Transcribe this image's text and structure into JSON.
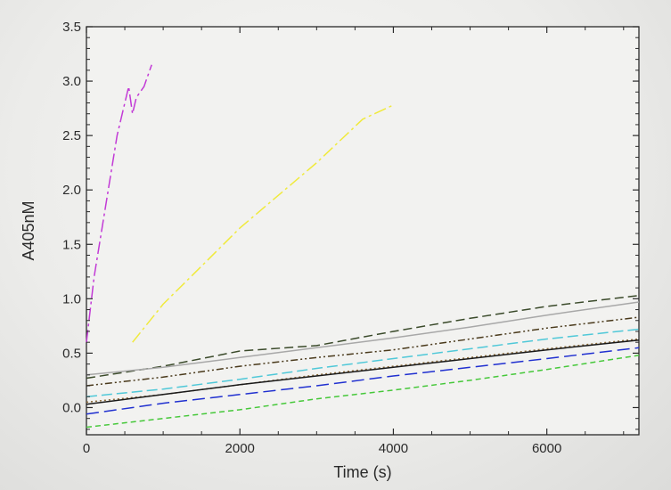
{
  "chart_data": {
    "type": "line",
    "title": "",
    "xlabel": "Time (s)",
    "ylabel": "A405nM",
    "xlim": [
      0,
      7200
    ],
    "ylim": [
      -0.25,
      3.5
    ],
    "x_ticks": [
      0,
      2000,
      4000,
      6000
    ],
    "x_tick_labels": [
      "0",
      "2000",
      "4000",
      "6000"
    ],
    "y_ticks": [
      0.0,
      0.5,
      1.0,
      1.5,
      2.0,
      2.5,
      3.0,
      3.5
    ],
    "y_tick_labels": [
      "0.0",
      "0.5",
      "1.0",
      "1.5",
      "2.0",
      "2.5",
      "3.0",
      "3.5"
    ],
    "grid": false,
    "legend": "none",
    "series": [
      {
        "color": "#c23ad6",
        "dash": "14,4,3,4",
        "x": [
          0,
          100,
          250,
          400,
          550,
          600,
          650,
          750,
          850
        ],
        "y": [
          0.6,
          1.2,
          1.85,
          2.5,
          2.95,
          2.7,
          2.85,
          2.95,
          3.15
        ]
      },
      {
        "color": "#f0ea3c",
        "dash": "14,4,3,4",
        "x": [
          600,
          1000,
          1500,
          2000,
          2500,
          3000,
          3600,
          4000
        ],
        "y": [
          0.6,
          0.95,
          1.3,
          1.65,
          1.95,
          2.25,
          2.65,
          2.78
        ]
      },
      {
        "color": "#3a4a2a",
        "dash": "10,5",
        "x": [
          0,
          1000,
          2000,
          3000,
          4000,
          5000,
          6000,
          7200
        ],
        "y": [
          0.27,
          0.38,
          0.52,
          0.57,
          0.7,
          0.82,
          0.93,
          1.03
        ]
      },
      {
        "color": "#a8a8a8",
        "dash": "",
        "x": [
          0,
          1000,
          2000,
          3000,
          4000,
          5000,
          6000,
          7200
        ],
        "y": [
          0.3,
          0.37,
          0.46,
          0.55,
          0.64,
          0.74,
          0.85,
          0.97
        ]
      },
      {
        "color": "#4a3a1c",
        "dash": "8,3,2,3,2,3",
        "x": [
          0,
          1000,
          2000,
          3000,
          4000,
          5000,
          6000,
          7200
        ],
        "y": [
          0.2,
          0.28,
          0.38,
          0.46,
          0.53,
          0.63,
          0.73,
          0.83
        ]
      },
      {
        "color": "#4fc8d8",
        "dash": "12,5",
        "x": [
          0,
          1000,
          2000,
          3000,
          4000,
          5000,
          6000,
          7200
        ],
        "y": [
          0.1,
          0.17,
          0.26,
          0.36,
          0.45,
          0.54,
          0.63,
          0.72
        ]
      },
      {
        "color": "#8a6a3a",
        "dash": "2,3",
        "x": [
          0,
          1000,
          2000,
          3000,
          4000,
          5000,
          6000,
          7200
        ],
        "y": [
          0.05,
          0.12,
          0.21,
          0.3,
          0.38,
          0.46,
          0.54,
          0.63
        ]
      },
      {
        "color": "#1a1a1a",
        "dash": "",
        "x": [
          0,
          1000,
          2000,
          3000,
          4000,
          5000,
          6000,
          7200
        ],
        "y": [
          0.03,
          0.12,
          0.21,
          0.29,
          0.37,
          0.45,
          0.53,
          0.62
        ]
      },
      {
        "color": "#2030d0",
        "dash": "14,6",
        "x": [
          0,
          1000,
          2000,
          3000,
          4000,
          5000,
          6000,
          7200
        ],
        "y": [
          -0.06,
          0.04,
          0.12,
          0.2,
          0.29,
          0.37,
          0.45,
          0.55
        ]
      },
      {
        "color": "#46c83a",
        "dash": "6,4",
        "x": [
          0,
          1000,
          2000,
          3000,
          4000,
          5000,
          6000,
          7200
        ],
        "y": [
          -0.18,
          -0.1,
          -0.02,
          0.08,
          0.16,
          0.25,
          0.35,
          0.48
        ]
      }
    ]
  }
}
